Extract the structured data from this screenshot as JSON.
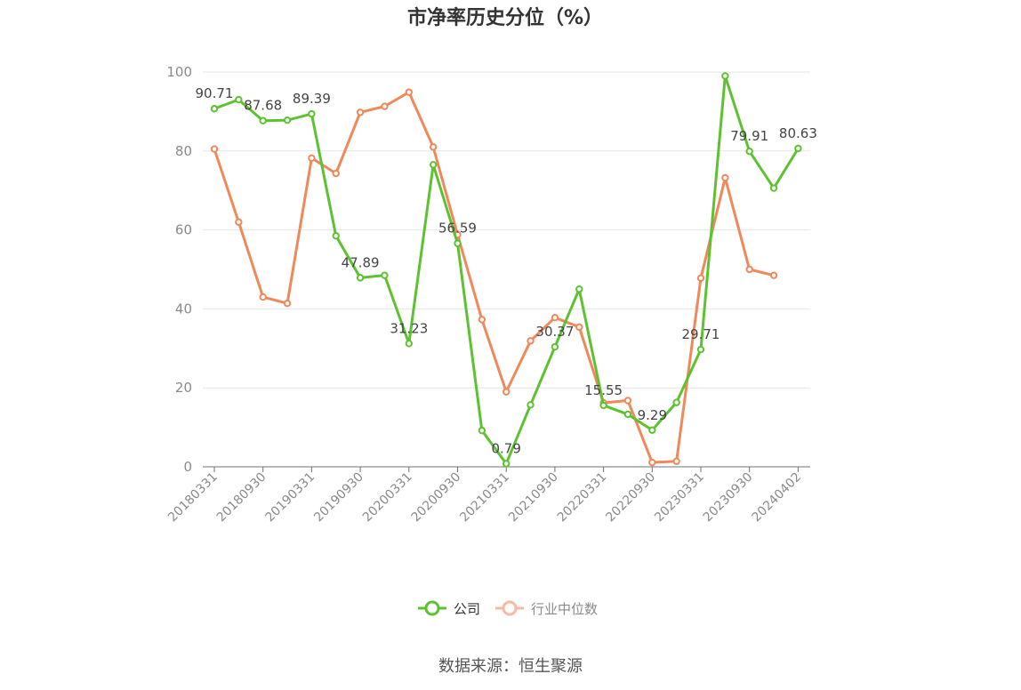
{
  "chart_data": {
    "type": "line",
    "title": "市净率历史分位（%）",
    "source": "数据来源：恒生聚源",
    "ylim": [
      0,
      100
    ],
    "yticks": [
      "0",
      "20",
      "40",
      "60",
      "80",
      "100"
    ],
    "xtick_labels": [
      "20180331",
      "20180930",
      "20190331",
      "20190930",
      "20200331",
      "20200930",
      "20210331",
      "20210930",
      "20220331",
      "20220930",
      "20230331",
      "20230930",
      "20240402"
    ],
    "x": [
      "20180331",
      "20180630",
      "20180930",
      "20181231",
      "20190331",
      "20190630",
      "20190930",
      "20191231",
      "20200331",
      "20200630",
      "20200930",
      "20201231",
      "20210331",
      "20210630",
      "20210930",
      "20211231",
      "20220331",
      "20220630",
      "20220930",
      "20221231",
      "20230331",
      "20230630",
      "20230930",
      "20231231",
      "20240402"
    ],
    "legend_position": "bottom",
    "grid": true,
    "series": [
      {
        "name": "公司",
        "color": "#5dc22f",
        "values": [
          90.71,
          93.0,
          87.68,
          87.8,
          89.39,
          58.5,
          47.89,
          48.5,
          31.23,
          76.5,
          56.59,
          9.2,
          0.79,
          15.7,
          30.37,
          45.0,
          15.55,
          13.3,
          9.29,
          16.3,
          29.71,
          99.0,
          79.91,
          70.6,
          80.63
        ],
        "labels": [
          "90.71",
          "",
          "87.68",
          "",
          "89.39",
          "",
          "47.89",
          "",
          "31.23",
          "",
          "56.59",
          "",
          "0.79",
          "",
          "30.37",
          "",
          "15.55",
          "",
          "9.29",
          "",
          "29.71",
          "",
          "79.91",
          "",
          "80.63"
        ]
      },
      {
        "name": "行业中位数",
        "color": "#f0885a",
        "values": [
          80.5,
          62.0,
          43.0,
          41.4,
          78.2,
          74.3,
          89.8,
          91.3,
          94.9,
          81.0,
          58.8,
          37.3,
          19.0,
          31.9,
          37.8,
          35.4,
          16.2,
          16.8,
          1.1,
          1.4,
          47.8,
          73.2,
          50.0,
          48.5,
          null
        ]
      }
    ]
  }
}
